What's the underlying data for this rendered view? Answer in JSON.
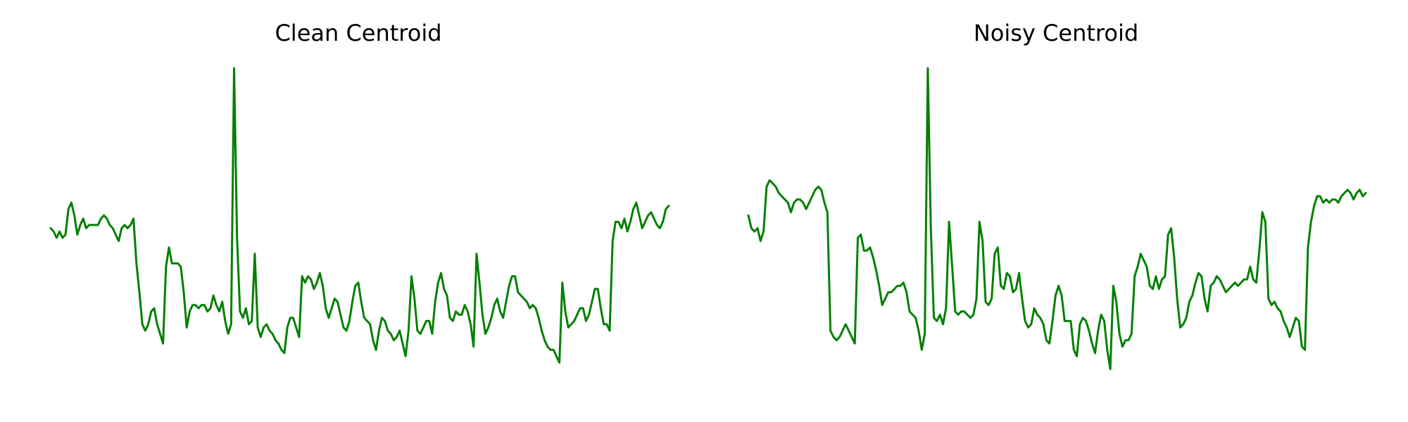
{
  "line_color": "#008000",
  "chart_data": [
    {
      "type": "line",
      "title": "Clean Centroid",
      "xlabel": "",
      "ylabel": "",
      "axes_visible": false,
      "grid": false,
      "x_range": [
        0,
        191
      ],
      "y_range": [
        0,
        1
      ],
      "series": [
        {
          "color": "#008000",
          "values": [
            0.5,
            0.49,
            0.47,
            0.49,
            0.47,
            0.48,
            0.56,
            0.58,
            0.54,
            0.48,
            0.51,
            0.53,
            0.5,
            0.51,
            0.51,
            0.51,
            0.51,
            0.53,
            0.54,
            0.53,
            0.51,
            0.5,
            0.48,
            0.46,
            0.5,
            0.51,
            0.5,
            0.51,
            0.53,
            0.39,
            0.3,
            0.2,
            0.18,
            0.2,
            0.24,
            0.25,
            0.2,
            0.17,
            0.14,
            0.38,
            0.44,
            0.39,
            0.39,
            0.39,
            0.38,
            0.3,
            0.19,
            0.24,
            0.26,
            0.26,
            0.25,
            0.26,
            0.26,
            0.24,
            0.25,
            0.29,
            0.26,
            0.24,
            0.27,
            0.21,
            0.17,
            0.2,
            1.0,
            0.47,
            0.24,
            0.22,
            0.25,
            0.2,
            0.21,
            0.42,
            0.19,
            0.16,
            0.19,
            0.2,
            0.18,
            0.17,
            0.15,
            0.14,
            0.12,
            0.11,
            0.19,
            0.22,
            0.22,
            0.19,
            0.16,
            0.35,
            0.33,
            0.35,
            0.34,
            0.31,
            0.33,
            0.36,
            0.32,
            0.25,
            0.22,
            0.25,
            0.28,
            0.27,
            0.23,
            0.19,
            0.18,
            0.21,
            0.27,
            0.32,
            0.33,
            0.27,
            0.22,
            0.21,
            0.2,
            0.15,
            0.12,
            0.18,
            0.22,
            0.21,
            0.18,
            0.17,
            0.15,
            0.16,
            0.18,
            0.14,
            0.1,
            0.18,
            0.35,
            0.28,
            0.18,
            0.17,
            0.19,
            0.21,
            0.21,
            0.17,
            0.27,
            0.33,
            0.36,
            0.31,
            0.29,
            0.22,
            0.21,
            0.24,
            0.23,
            0.23,
            0.26,
            0.24,
            0.2,
            0.13,
            0.42,
            0.33,
            0.23,
            0.17,
            0.19,
            0.22,
            0.26,
            0.28,
            0.24,
            0.22,
            0.27,
            0.32,
            0.35,
            0.35,
            0.3,
            0.29,
            0.28,
            0.27,
            0.25,
            0.26,
            0.25,
            0.22,
            0.18,
            0.15,
            0.13,
            0.12,
            0.12,
            0.1,
            0.08,
            0.33,
            0.24,
            0.19,
            0.2,
            0.21,
            0.23,
            0.25,
            0.25,
            0.21,
            0.23,
            0.27,
            0.31,
            0.31,
            0.25,
            0.2,
            0.2,
            0.18,
            0.46,
            0.52,
            0.52,
            0.5,
            0.53,
            0.49,
            0.52,
            0.56,
            0.58,
            0.54,
            0.5,
            0.52,
            0.54,
            0.55,
            0.53,
            0.51,
            0.5,
            0.52,
            0.56,
            0.57
          ]
        }
      ]
    },
    {
      "type": "line",
      "title": "Noisy Centroid",
      "xlabel": "",
      "ylabel": "",
      "axes_visible": false,
      "grid": false,
      "x_range": [
        0,
        191
      ],
      "y_range": [
        0,
        1
      ],
      "series": [
        {
          "color": "#008000",
          "values": [
            0.54,
            0.5,
            0.49,
            0.5,
            0.46,
            0.49,
            0.63,
            0.65,
            0.64,
            0.63,
            0.61,
            0.6,
            0.59,
            0.58,
            0.55,
            0.58,
            0.59,
            0.59,
            0.58,
            0.56,
            0.58,
            0.6,
            0.62,
            0.63,
            0.62,
            0.58,
            0.55,
            0.18,
            0.16,
            0.15,
            0.16,
            0.18,
            0.2,
            0.18,
            0.16,
            0.14,
            0.47,
            0.48,
            0.43,
            0.43,
            0.44,
            0.41,
            0.37,
            0.32,
            0.26,
            0.28,
            0.3,
            0.3,
            0.31,
            0.32,
            0.32,
            0.33,
            0.3,
            0.24,
            0.23,
            0.22,
            0.18,
            0.12,
            0.17,
            1.0,
            0.5,
            0.22,
            0.21,
            0.23,
            0.2,
            0.25,
            0.52,
            0.38,
            0.24,
            0.23,
            0.24,
            0.24,
            0.23,
            0.22,
            0.23,
            0.28,
            0.52,
            0.46,
            0.27,
            0.26,
            0.28,
            0.42,
            0.44,
            0.32,
            0.31,
            0.36,
            0.35,
            0.3,
            0.31,
            0.36,
            0.28,
            0.21,
            0.19,
            0.2,
            0.25,
            0.23,
            0.22,
            0.2,
            0.15,
            0.14,
            0.21,
            0.29,
            0.32,
            0.29,
            0.21,
            0.21,
            0.21,
            0.12,
            0.1,
            0.2,
            0.22,
            0.21,
            0.18,
            0.14,
            0.11,
            0.18,
            0.23,
            0.21,
            0.12,
            0.06,
            0.32,
            0.27,
            0.17,
            0.13,
            0.15,
            0.15,
            0.17,
            0.35,
            0.38,
            0.42,
            0.4,
            0.38,
            0.32,
            0.31,
            0.35,
            0.31,
            0.34,
            0.35,
            0.48,
            0.5,
            0.41,
            0.28,
            0.19,
            0.2,
            0.22,
            0.27,
            0.29,
            0.33,
            0.36,
            0.35,
            0.28,
            0.24,
            0.32,
            0.33,
            0.35,
            0.34,
            0.32,
            0.3,
            0.31,
            0.32,
            0.33,
            0.32,
            0.33,
            0.34,
            0.34,
            0.38,
            0.34,
            0.33,
            0.43,
            0.55,
            0.52,
            0.28,
            0.26,
            0.27,
            0.25,
            0.24,
            0.21,
            0.19,
            0.16,
            0.19,
            0.22,
            0.21,
            0.13,
            0.12,
            0.44,
            0.52,
            0.57,
            0.6,
            0.6,
            0.58,
            0.59,
            0.58,
            0.59,
            0.59,
            0.58,
            0.6,
            0.61,
            0.62,
            0.61,
            0.59,
            0.61,
            0.62,
            0.6,
            0.61
          ]
        }
      ]
    }
  ]
}
